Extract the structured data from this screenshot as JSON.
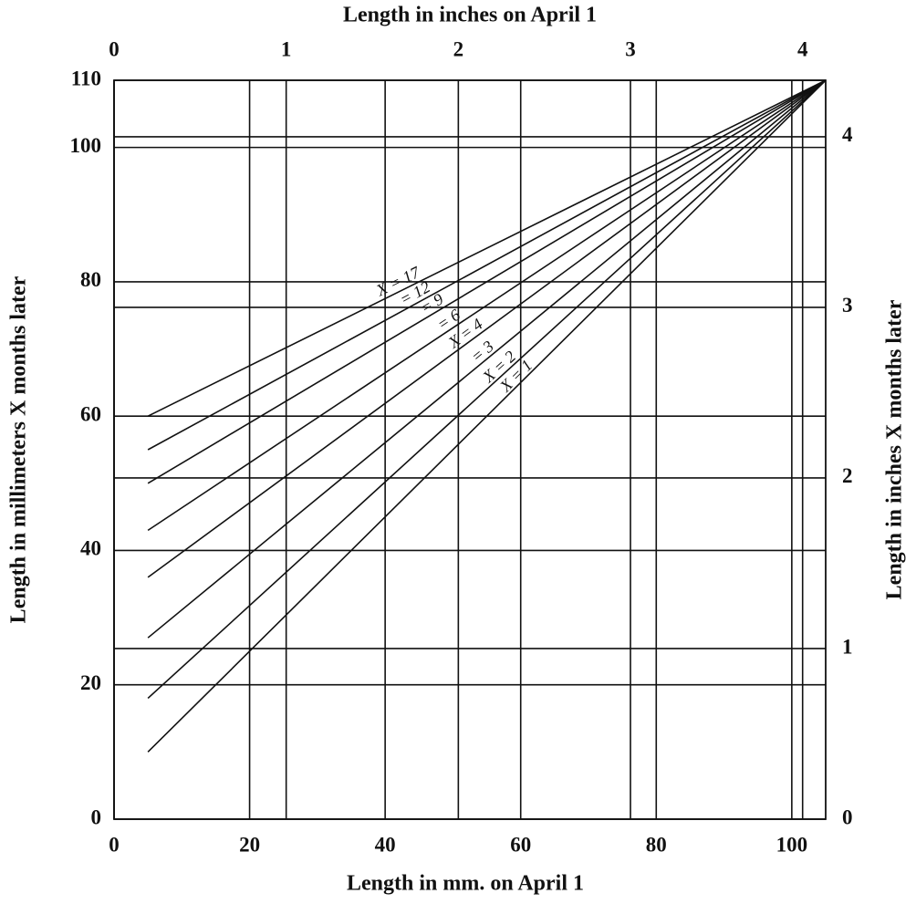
{
  "chart_data": {
    "type": "line",
    "xlabel": "Length in mm. on April 1",
    "ylabel": "Length in millimeters X months later",
    "x2label": "Length in inches on April 1",
    "y2label": "Length in inches X months later",
    "x": [
      5,
      105
    ],
    "series": [
      {
        "name": "X = 17",
        "color": "#111111",
        "values": [
          60,
          110
        ]
      },
      {
        "name": "= 12",
        "color": "#111111",
        "values": [
          55,
          110
        ]
      },
      {
        "name": "= 9",
        "color": "#111111",
        "values": [
          50,
          110
        ]
      },
      {
        "name": "= 6",
        "color": "#111111",
        "values": [
          43,
          110
        ]
      },
      {
        "name": "X = 4",
        "color": "#111111",
        "values": [
          36,
          110
        ]
      },
      {
        "name": "= 3",
        "color": "#111111",
        "values": [
          27,
          110
        ]
      },
      {
        "name": "X = 2",
        "color": "#111111",
        "values": [
          18,
          110
        ]
      },
      {
        "name": "X = 1",
        "color": "#111111",
        "values": [
          10,
          110
        ]
      }
    ],
    "xlim": [
      0,
      105
    ],
    "ylim": [
      0,
      110
    ],
    "xticks": [
      0,
      20,
      40,
      60,
      80,
      100
    ],
    "yticks": [
      0,
      20,
      40,
      60,
      80,
      100,
      110
    ],
    "x2lim": [
      0,
      4.134
    ],
    "x2ticks": [
      0,
      1,
      2,
      3,
      4
    ],
    "y2lim": [
      0,
      4.331
    ],
    "y2ticks": [
      0,
      1,
      2,
      3,
      4
    ],
    "grid": true
  }
}
